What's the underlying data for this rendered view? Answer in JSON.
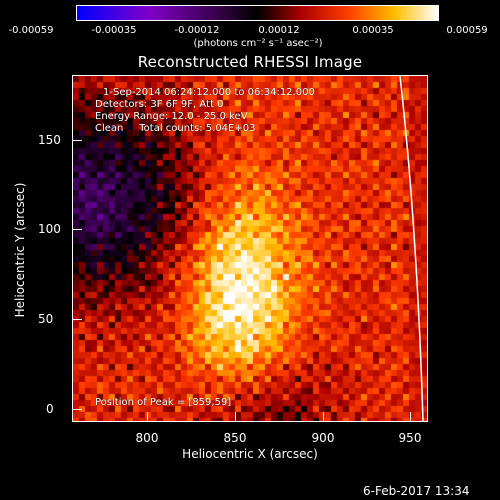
{
  "colorbar": {
    "ticks": [
      "-0.00059",
      "-0.00035",
      "-0.00012",
      "0.00012",
      "0.00035",
      "0.00059"
    ],
    "units": "(photons cm⁻² s⁻¹ asec⁻²)"
  },
  "title": "Reconstructed RHESSI Image",
  "info": {
    "time": "1-Sep-2014 06:24:12.000 to 06:34:12.000",
    "detectors": "Detectors: 3F 6F 9F, Att 0",
    "energy": "Energy Range: 12.0 - 25.0 keV",
    "method": "Clean     Total counts: 5.04E+03",
    "peak": "Position of Peak = [859,59]"
  },
  "axes": {
    "xlabel": "Heliocentric X (arcsec)",
    "ylabel": "Heliocentric Y (arcsec)",
    "xticks": [
      "800",
      "850",
      "900",
      "950"
    ],
    "yticks": [
      "150",
      "100",
      "50",
      "0"
    ]
  },
  "datestamp": "6-Feb-2017 13:34",
  "colors": {
    "background": "#000000",
    "foreground": "#ffffff"
  }
}
